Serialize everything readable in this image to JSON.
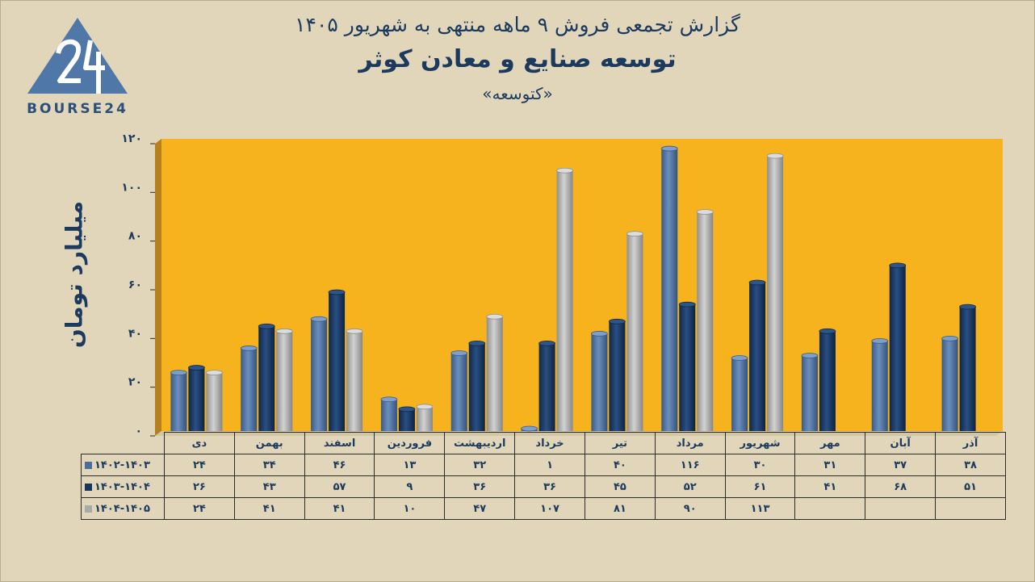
{
  "header": {
    "line1": "گزارش تجمعی فروش ۹ ماهه منتهی به شهریور ۱۴۰۵",
    "line2": "توسعه صنایع و معادن کوثر",
    "line3": "«کتوسعه»"
  },
  "logo": {
    "text": "BOURSE24",
    "mark": "24"
  },
  "colors": {
    "background": "#e1d6ba",
    "plot": "#f6b31d",
    "series1": "#4a6e9c",
    "series2": "#17365d",
    "series3": "#a9a9a9",
    "text": "#1c3a5e"
  },
  "chart_data": {
    "type": "bar",
    "ylabel": "میلیارد تومان",
    "ylim": [
      0,
      120
    ],
    "yticks": [
      "۰",
      "۲۰",
      "۴۰",
      "۶۰",
      "۸۰",
      "۱۰۰",
      "۱۲۰"
    ],
    "grid": false,
    "legend": "table-below",
    "categories": [
      "دی",
      "بهمن",
      "اسفند",
      "فروردین",
      "اردیبهشت",
      "خرداد",
      "تیر",
      "مرداد",
      "شهریور",
      "مهر",
      "آبان",
      "آذر"
    ],
    "series": [
      {
        "name": "1402-1403",
        "values": [
          24,
          34,
          46,
          13,
          32,
          1,
          40,
          116,
          30,
          31,
          37,
          38
        ],
        "labels": [
          "۲۴",
          "۳۴",
          "۴۶",
          "۱۳",
          "۳۲",
          "۱",
          "۴۰",
          "۱۱۶",
          "۳۰",
          "۳۱",
          "۳۷",
          "۳۸"
        ]
      },
      {
        "name": "1403-1404",
        "values": [
          26,
          43,
          57,
          9,
          36,
          36,
          45,
          52,
          61,
          41,
          68,
          51
        ],
        "labels": [
          "۲۶",
          "۴۳",
          "۵۷",
          "۹",
          "۳۶",
          "۳۶",
          "۴۵",
          "۵۲",
          "۶۱",
          "۴۱",
          "۶۸",
          "۵۱"
        ]
      },
      {
        "name": "1404-1405",
        "values": [
          24,
          41,
          41,
          10,
          47,
          107,
          81,
          90,
          113,
          null,
          null,
          null
        ],
        "labels": [
          "۲۴",
          "۴۱",
          "۴۱",
          "۱۰",
          "۴۷",
          "۱۰۷",
          "۸۱",
          "۹۰",
          "۱۱۳",
          "",
          "",
          ""
        ]
      }
    ],
    "series_display_names": [
      "۱۴۰۲-۱۴۰۳",
      "۱۴۰۳-۱۴۰۴",
      "۱۴۰۴-۱۴۰۵"
    ]
  }
}
